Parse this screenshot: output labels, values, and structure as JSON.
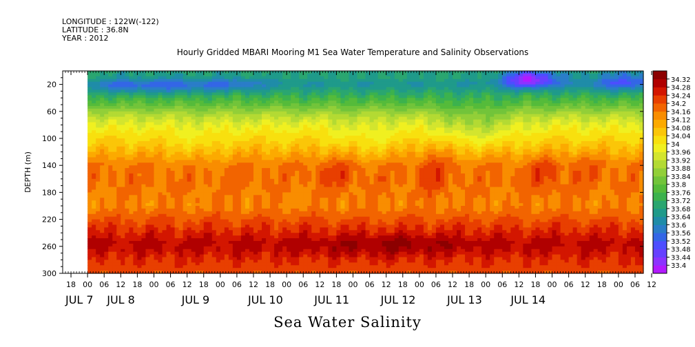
{
  "header": {
    "longitude": "LONGITUDE : 122W(-122)",
    "latitude": "LATITUDE : 36.8N",
    "year": "YEAR : 2012"
  },
  "chart_data": {
    "type": "heatmap",
    "title": "Hourly Gridded MBARI Mooring M1 Sea Water Temperature and Salinity Observations",
    "subtitle": "Sea Water Salinity",
    "xlabel": "",
    "ylabel": "DEPTH (m)",
    "y_reversed": true,
    "y_range": [
      0,
      300
    ],
    "y_ticks": [
      20,
      60,
      100,
      140,
      180,
      220,
      260,
      300
    ],
    "x_range_hours": [
      -9,
      201
    ],
    "data_start_hour": 0,
    "x_hour_ticks": [
      {
        "h": -6,
        "label": "18"
      },
      {
        "h": 0,
        "label": "00"
      },
      {
        "h": 6,
        "label": "06"
      },
      {
        "h": 12,
        "label": "12"
      },
      {
        "h": 18,
        "label": "18"
      },
      {
        "h": 24,
        "label": "00"
      },
      {
        "h": 30,
        "label": "06"
      },
      {
        "h": 36,
        "label": "12"
      },
      {
        "h": 42,
        "label": "18"
      },
      {
        "h": 48,
        "label": "00"
      },
      {
        "h": 54,
        "label": "06"
      },
      {
        "h": 60,
        "label": "12"
      },
      {
        "h": 66,
        "label": "18"
      },
      {
        "h": 72,
        "label": "00"
      },
      {
        "h": 78,
        "label": "06"
      },
      {
        "h": 84,
        "label": "12"
      },
      {
        "h": 90,
        "label": "18"
      },
      {
        "h": 96,
        "label": "00"
      },
      {
        "h": 102,
        "label": "06"
      },
      {
        "h": 108,
        "label": "12"
      },
      {
        "h": 114,
        "label": "18"
      },
      {
        "h": 120,
        "label": "00"
      },
      {
        "h": 126,
        "label": "06"
      },
      {
        "h": 132,
        "label": "12"
      },
      {
        "h": 138,
        "label": "18"
      },
      {
        "h": 144,
        "label": "00"
      },
      {
        "h": 150,
        "label": "06"
      },
      {
        "h": 156,
        "label": "12"
      },
      {
        "h": 162,
        "label": "18"
      },
      {
        "h": 168,
        "label": "00"
      },
      {
        "h": 174,
        "label": "06"
      },
      {
        "h": 180,
        "label": "12"
      },
      {
        "h": 186,
        "label": "18"
      },
      {
        "h": 192,
        "label": "00"
      },
      {
        "h": 198,
        "label": "06"
      },
      {
        "h": 204,
        "label": "12"
      }
    ],
    "x_day_labels": [
      {
        "h": -8,
        "label": "JUL 7"
      },
      {
        "h": 7,
        "label": "JUL 8"
      },
      {
        "h": 34,
        "label": "JUL 9"
      },
      {
        "h": 58,
        "label": "JUL 10"
      },
      {
        "h": 82,
        "label": "JUL 11"
      },
      {
        "h": 106,
        "label": "JUL 12"
      },
      {
        "h": 130,
        "label": "JUL 13"
      },
      {
        "h": 153,
        "label": "JUL 14"
      }
    ],
    "colorbar_levels": [
      33.4,
      33.44,
      33.48,
      33.52,
      33.56,
      33.6,
      33.64,
      33.68,
      33.72,
      33.76,
      33.8,
      33.84,
      33.88,
      33.92,
      33.96,
      34,
      34.04,
      34.08,
      34.12,
      34.16,
      34.2,
      34.24,
      34.28,
      34.32
    ],
    "colorbar_labels": [
      "33.4",
      "33.44",
      "33.48",
      "33.52",
      "33.56",
      "33.6",
      "33.64",
      "33.68",
      "33.72",
      "33.76",
      "33.8",
      "33.84",
      "33.88",
      "33.92",
      "33.96",
      "34",
      "34.04",
      "34.08",
      "34.12",
      "34.16",
      "34.2",
      "34.24",
      "34.28",
      "34.32"
    ],
    "colorbar_colors": [
      "#b21aff",
      "#8c33ff",
      "#6640ff",
      "#4d4dff",
      "#3366e6",
      "#2a7dc8",
      "#1f8ca8",
      "#1f9a8a",
      "#2aa670",
      "#3cb24d",
      "#55bb3a",
      "#72c43a",
      "#92cf38",
      "#b3da33",
      "#d3e52e",
      "#f0f020",
      "#f8e00e",
      "#fbc608",
      "#fcaa00",
      "#f98d00",
      "#f26400",
      "#e83f00",
      "#d31600",
      "#b00000",
      "#8c0000"
    ],
    "depth_profile": [
      {
        "depth": 10,
        "value": 33.68
      },
      {
        "depth": 20,
        "value": 33.64
      },
      {
        "depth": 35,
        "value": 33.72
      },
      {
        "depth": 50,
        "value": 33.8
      },
      {
        "depth": 65,
        "value": 33.9
      },
      {
        "depth": 80,
        "value": 33.97
      },
      {
        "depth": 95,
        "value": 34.02
      },
      {
        "depth": 110,
        "value": 34.06
      },
      {
        "depth": 125,
        "value": 34.11
      },
      {
        "depth": 140,
        "value": 34.16
      },
      {
        "depth": 160,
        "value": 34.17
      },
      {
        "depth": 180,
        "value": 34.16
      },
      {
        "depth": 200,
        "value": 34.15
      },
      {
        "depth": 220,
        "value": 34.2
      },
      {
        "depth": 240,
        "value": 34.25
      },
      {
        "depth": 255,
        "value": 34.29
      },
      {
        "depth": 265,
        "value": 34.28
      },
      {
        "depth": 280,
        "value": 34.24
      },
      {
        "depth": 300,
        "value": 34.21
      }
    ],
    "anomalies": [
      {
        "h": 160,
        "depth": 12,
        "amp": -0.28,
        "sh": 7,
        "sd": 9
      },
      {
        "h": 195,
        "depth": 15,
        "amp": -0.14,
        "sh": 10,
        "sd": 10
      },
      {
        "h": 30,
        "depth": 22,
        "amp": -0.1,
        "sh": 10,
        "sd": 8
      },
      {
        "h": 12,
        "depth": 22,
        "amp": -0.08,
        "sh": 8,
        "sd": 8
      },
      {
        "h": 52,
        "depth": 20,
        "amp": -0.08,
        "sh": 9,
        "sd": 8
      },
      {
        "h": 140,
        "depth": 80,
        "amp": -0.08,
        "sh": 10,
        "sd": 22
      },
      {
        "h": 125,
        "depth": 140,
        "amp": 0.06,
        "sh": 4,
        "sd": 30
      },
      {
        "h": 90,
        "depth": 150,
        "amp": 0.05,
        "sh": 5,
        "sd": 20
      },
      {
        "h": 165,
        "depth": 150,
        "amp": 0.06,
        "sh": 4,
        "sd": 20
      },
      {
        "h": 180,
        "depth": 140,
        "amp": 0.03,
        "sh": 5,
        "sd": 20
      },
      {
        "h": 110,
        "depth": 258,
        "amp": 0.04,
        "sh": 18,
        "sd": 12
      },
      {
        "h": 100,
        "depth": 100,
        "amp": -0.04,
        "sh": 8,
        "sd": 20
      },
      {
        "h": 40,
        "depth": 110,
        "amp": -0.03,
        "sh": 6,
        "sd": 25
      }
    ]
  }
}
